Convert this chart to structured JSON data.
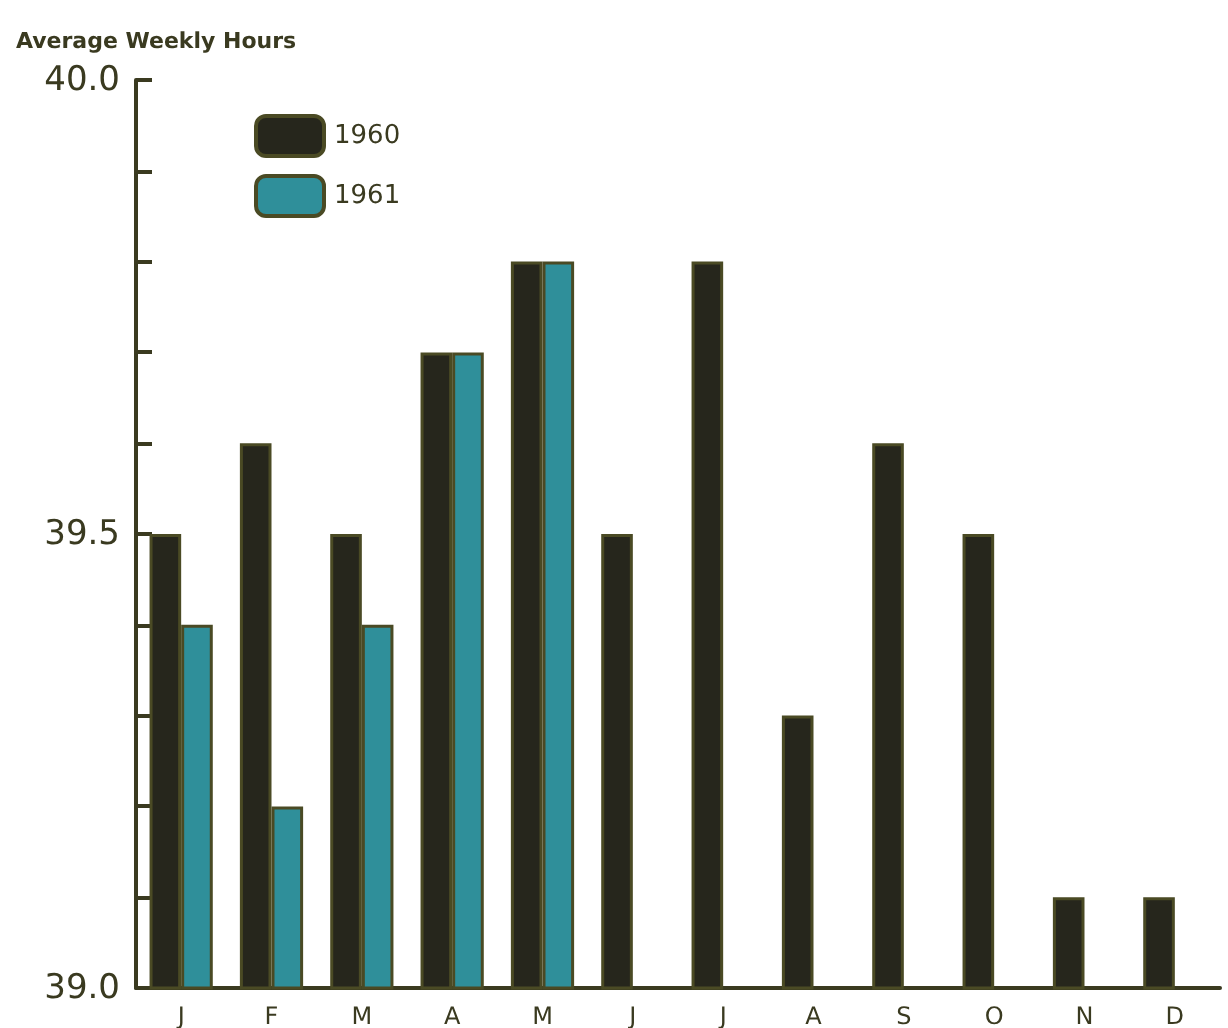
{
  "chart_data": {
    "type": "bar",
    "ylabel": "Average Weekly Hours",
    "categories": [
      "J",
      "F",
      "M",
      "A",
      "M",
      "J",
      "J",
      "A",
      "S",
      "O",
      "N",
      "D"
    ],
    "series": [
      {
        "name": "1960",
        "color": "#26261c",
        "values": [
          39.5,
          39.6,
          39.5,
          39.7,
          39.8,
          39.5,
          39.8,
          39.3,
          39.6,
          39.5,
          39.1,
          39.1
        ]
      },
      {
        "name": "1961",
        "color": "#2f8f9a",
        "values": [
          39.4,
          39.2,
          39.4,
          39.7,
          39.8,
          null,
          null,
          null,
          null,
          null,
          null,
          null
        ]
      }
    ],
    "ylim": [
      39.0,
      40.0
    ],
    "yticks": [
      {
        "value": 39.0,
        "label": "39.0"
      },
      {
        "value": 39.1,
        "label": null
      },
      {
        "value": 39.2,
        "label": null
      },
      {
        "value": 39.3,
        "label": null
      },
      {
        "value": 39.4,
        "label": null
      },
      {
        "value": 39.5,
        "label": "39.5"
      },
      {
        "value": 39.6,
        "label": null
      },
      {
        "value": 39.7,
        "label": null
      },
      {
        "value": 39.8,
        "label": null
      },
      {
        "value": 39.9,
        "label": null
      },
      {
        "value": 40.0,
        "label": "40.0"
      }
    ],
    "grid": false,
    "legend": "top left"
  }
}
